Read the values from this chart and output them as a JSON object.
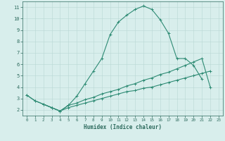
{
  "xlabel": "Humidex (Indice chaleur)",
  "x_values": [
    0,
    1,
    2,
    3,
    4,
    5,
    6,
    7,
    8,
    9,
    10,
    11,
    12,
    13,
    14,
    15,
    16,
    17,
    18,
    19,
    20,
    21,
    22,
    23
  ],
  "line1_y": [
    3.3,
    2.8,
    2.5,
    2.2,
    1.9,
    2.4,
    3.2,
    4.3,
    5.4,
    6.5,
    8.6,
    9.7,
    10.3,
    10.8,
    11.1,
    10.8,
    9.9,
    8.7,
    6.5,
    6.5,
    5.9,
    4.7,
    null,
    null
  ],
  "line2_y": [
    null,
    null,
    2.5,
    2.2,
    1.9,
    2.4,
    2.6,
    2.9,
    3.1,
    3.4,
    3.6,
    3.8,
    4.1,
    4.3,
    4.6,
    4.8,
    5.1,
    5.3,
    5.6,
    5.9,
    6.2,
    6.5,
    4.0,
    null
  ],
  "line3_y": [
    3.3,
    2.8,
    2.5,
    2.2,
    1.9,
    2.2,
    2.4,
    2.6,
    2.8,
    3.0,
    3.2,
    3.4,
    3.6,
    3.7,
    3.9,
    4.0,
    4.2,
    4.4,
    4.6,
    4.8,
    5.0,
    5.2,
    5.4,
    null
  ],
  "line_color": "#2e8b74",
  "bg_color": "#d8eeec",
  "grid_color": "#b8d8d4",
  "ylim": [
    1.5,
    11.5
  ],
  "xlim": [
    -0.5,
    23.5
  ],
  "yticks": [
    2,
    3,
    4,
    5,
    6,
    7,
    8,
    9,
    10,
    11
  ],
  "xticks": [
    0,
    1,
    2,
    3,
    4,
    5,
    6,
    7,
    8,
    9,
    10,
    11,
    12,
    13,
    14,
    15,
    16,
    17,
    18,
    19,
    20,
    21,
    22,
    23
  ]
}
